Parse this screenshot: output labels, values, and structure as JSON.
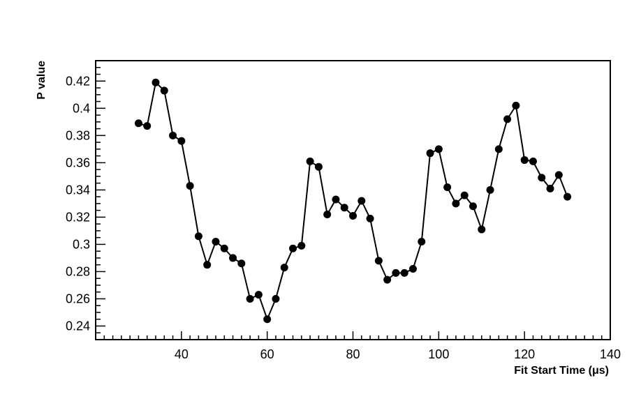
{
  "chart_data": {
    "type": "line",
    "title": "",
    "xlabel": "Fit Start Time (μs)",
    "ylabel": "P value",
    "xlim": [
      20,
      140
    ],
    "ylim": [
      0.23,
      0.435
    ],
    "x_ticks": [
      40,
      60,
      80,
      100,
      120,
      140
    ],
    "x_tick_labels": [
      "40",
      "60",
      "80",
      "100",
      "120",
      "140"
    ],
    "y_ticks": [
      0.24,
      0.26,
      0.28,
      0.3,
      0.32,
      0.34,
      0.36,
      0.38,
      0.4,
      0.42
    ],
    "y_tick_labels": [
      "0.24",
      "0.26",
      "0.28",
      "0.3",
      "0.32",
      "0.34",
      "0.36",
      "0.38",
      "0.4",
      "0.42"
    ],
    "grid": false,
    "legend": "none",
    "series": [
      {
        "color": "#000000",
        "marker": "circle",
        "x": [
          30,
          32,
          34,
          36,
          38,
          40,
          42,
          44,
          46,
          48,
          50,
          52,
          54,
          56,
          58,
          60,
          62,
          64,
          66,
          68,
          70,
          72,
          74,
          76,
          78,
          80,
          82,
          84,
          86,
          88,
          90,
          92,
          94,
          96,
          98,
          100,
          102,
          104,
          106,
          108,
          110,
          112,
          114,
          116,
          118,
          120,
          122,
          124,
          126,
          128,
          130
        ],
        "y": [
          0.389,
          0.387,
          0.419,
          0.413,
          0.38,
          0.376,
          0.343,
          0.306,
          0.285,
          0.302,
          0.297,
          0.29,
          0.286,
          0.26,
          0.263,
          0.245,
          0.26,
          0.283,
          0.297,
          0.299,
          0.361,
          0.357,
          0.322,
          0.333,
          0.327,
          0.321,
          0.332,
          0.319,
          0.288,
          0.274,
          0.279,
          0.279,
          0.282,
          0.302,
          0.367,
          0.37,
          0.342,
          0.33,
          0.336,
          0.328,
          0.311,
          0.34,
          0.37,
          0.392,
          0.402,
          0.362,
          0.361,
          0.349,
          0.341,
          0.351,
          0.335
        ]
      }
    ]
  }
}
